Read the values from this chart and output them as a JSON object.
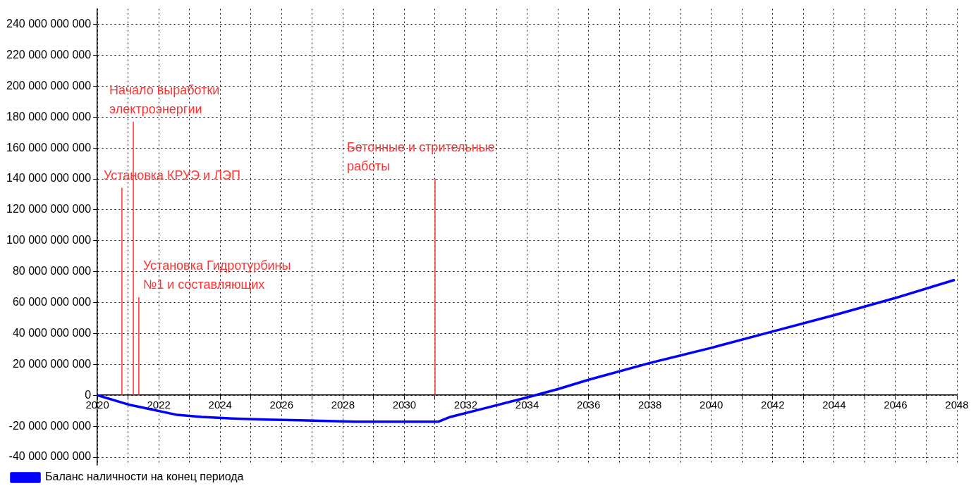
{
  "chart_data": {
    "type": "line",
    "x": [
      2020,
      2021.07,
      2021.4,
      2022.6,
      2023.4,
      2024.4,
      2025.5,
      2026.6,
      2028.4,
      2031.1,
      2031.5,
      2032.6,
      2034,
      2035,
      2036,
      2038,
      2040,
      2042,
      2044,
      2046,
      2047.9
    ],
    "series": [
      {
        "name": "Баланс наличности на конец периода",
        "color": "#0000ff",
        "values": [
          0,
          -6300000000.0,
          -7600000000.0,
          -12700000000.0,
          -14000000000.0,
          -15000000000.0,
          -15700000000.0,
          -16200000000.0,
          -17100000000.0,
          -17100000000.0,
          -14000000000.0,
          -8500000000.0,
          -1400000000.0,
          4000000000.0,
          10000000000.0,
          20900000000.0,
          30700000000.0,
          41300000000.0,
          51800000000.0,
          63000000000.0,
          74500000000.0
        ]
      }
    ],
    "xlim": [
      2020,
      2048
    ],
    "xticks": [
      2020,
      {
        "value": 2021,
        "label": null
      },
      2022,
      {
        "value": 2023,
        "label": null
      },
      2024,
      {
        "value": 2025,
        "label": null
      },
      2026,
      {
        "value": 2027,
        "label": null
      },
      2028,
      {
        "value": 2029,
        "label": null
      },
      2030,
      {
        "value": 2031,
        "label": null
      },
      2032,
      {
        "value": 2033,
        "label": null
      },
      2034,
      {
        "value": 2035,
        "label": null
      },
      2036,
      {
        "value": 2037,
        "label": null
      },
      2038,
      {
        "value": 2039,
        "label": null
      },
      2040,
      {
        "value": 2041,
        "label": null
      },
      2042,
      {
        "value": 2043,
        "label": null
      },
      2044,
      {
        "value": 2045,
        "label": null
      },
      2046,
      {
        "value": 2047,
        "label": null
      },
      2048
    ],
    "ylim": [
      -45000000000.0,
      250000000000.0
    ],
    "yticks": [
      {
        "value": -40000000000.0,
        "label": "-40 000 000 000"
      },
      {
        "value": -20000000000.0,
        "label": "-20 000 000 000"
      },
      {
        "value": 0,
        "label": "0"
      },
      {
        "value": 20000000000.0,
        "label": "20 000 000 000"
      },
      {
        "value": 40000000000.0,
        "label": "40 000 000 000"
      },
      {
        "value": 60000000000.0,
        "label": "60 000 000 000"
      },
      {
        "value": 80000000000.0,
        "label": "80 000 000 000"
      },
      {
        "value": 100000000000.0,
        "label": "100 000 000 000"
      },
      {
        "value": 120000000000.0,
        "label": "120 000 000 000"
      },
      {
        "value": 140000000000.0,
        "label": "140 000 000 000"
      },
      {
        "value": 160000000000.0,
        "label": "160 000 000 000"
      },
      {
        "value": 180000000000.0,
        "label": "180 000 000 000"
      },
      {
        "value": 200000000000.0,
        "label": "200 000 000 000"
      },
      {
        "value": 220000000000.0,
        "label": "220 000 000 000"
      },
      {
        "value": 240000000000.0,
        "label": "240 000 000 000"
      }
    ],
    "ref_lines": [
      {
        "axis": "x",
        "value": 2020.8,
        "label": "Установка КРУЭ и ЛЭП",
        "color": "#ff3333"
      },
      {
        "axis": "x",
        "value": 2021.17,
        "label": "Начало выработки электроэнергии",
        "color": "#ff3333"
      },
      {
        "axis": "x",
        "value": 2021.35,
        "label": "Установка Гидротурбины №1 и составляющих",
        "color": "#ff3333"
      },
      {
        "axis": "x",
        "value": 2031,
        "label": "Бетонные и стрительные работы",
        "color": "#ff3333"
      }
    ],
    "grid": true,
    "legend": "bottom left",
    "marker": "none",
    "line_style": "solid"
  }
}
